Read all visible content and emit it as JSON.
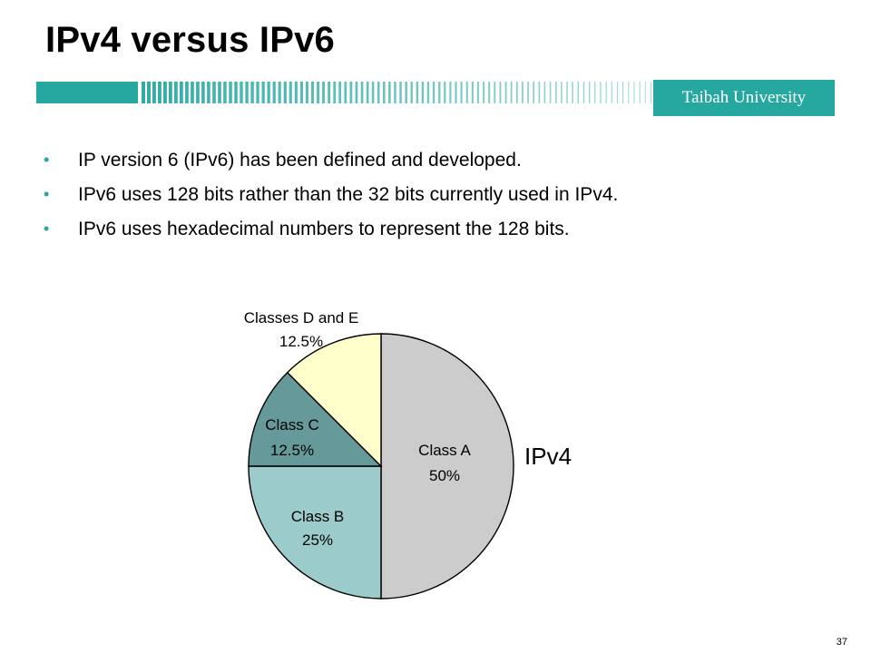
{
  "slide": {
    "title": "IPv4 versus IPv6",
    "organization": "Taibah University",
    "page_number": "37",
    "accent_color": "#26a8a0"
  },
  "bullets": [
    "IP version 6 (IPv6)  has been defined and developed.",
    "IPv6 uses 128 bits rather than the 32 bits currently used in IPv4.",
    "IPv6 uses hexadecimal numbers to represent the 128 bits."
  ],
  "chart_data": {
    "type": "pie",
    "title": "IPv4",
    "unit": "%",
    "slices": [
      {
        "label": "Class A",
        "value": 50,
        "value_label": "50%",
        "color": "#cccccc"
      },
      {
        "label": "Class B",
        "value": 25,
        "value_label": "25%",
        "color": "#9ccbcb"
      },
      {
        "label": "Class C",
        "value": 12.5,
        "value_label": "12.5%",
        "color": "#669999"
      },
      {
        "label": "Classes D and E",
        "value": 12.5,
        "value_label": "12.5%",
        "color": "#ffffcc"
      }
    ]
  }
}
